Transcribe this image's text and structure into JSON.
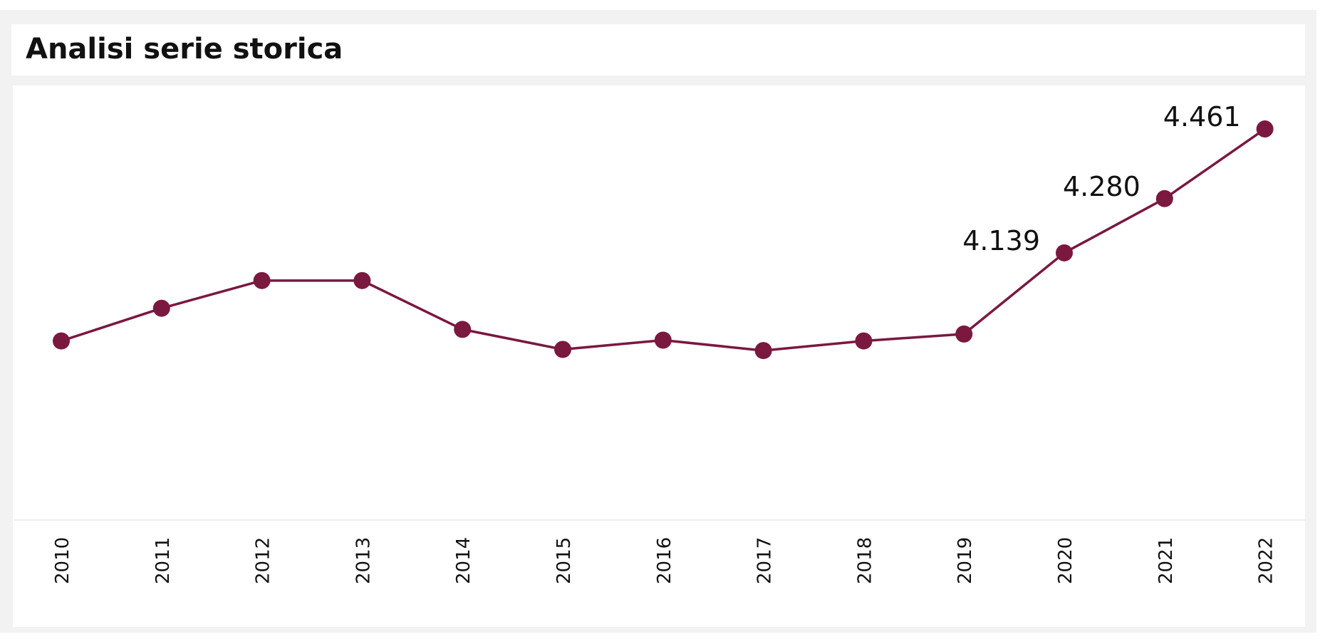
{
  "panel": {
    "title": "Analisi serie storica"
  },
  "chart_data": {
    "type": "line",
    "title": "Analisi serie storica",
    "xlabel": "",
    "ylabel": "",
    "color": "#7a1840",
    "grid": false,
    "ylim": [
      3500,
      4500
    ],
    "x": [
      "2010",
      "2011",
      "2012",
      "2013",
      "2014",
      "2015",
      "2016",
      "2017",
      "2018",
      "2019",
      "2020",
      "2021",
      "2022"
    ],
    "values": [
      3910,
      3995,
      4067,
      4067,
      3940,
      3888,
      3912,
      3885,
      3910,
      3928,
      4139,
      4280,
      4461
    ],
    "data_labels": [
      {
        "index": 10,
        "text": "4.139"
      },
      {
        "index": 11,
        "text": "4.280"
      },
      {
        "index": 12,
        "text": "4.461"
      }
    ]
  }
}
